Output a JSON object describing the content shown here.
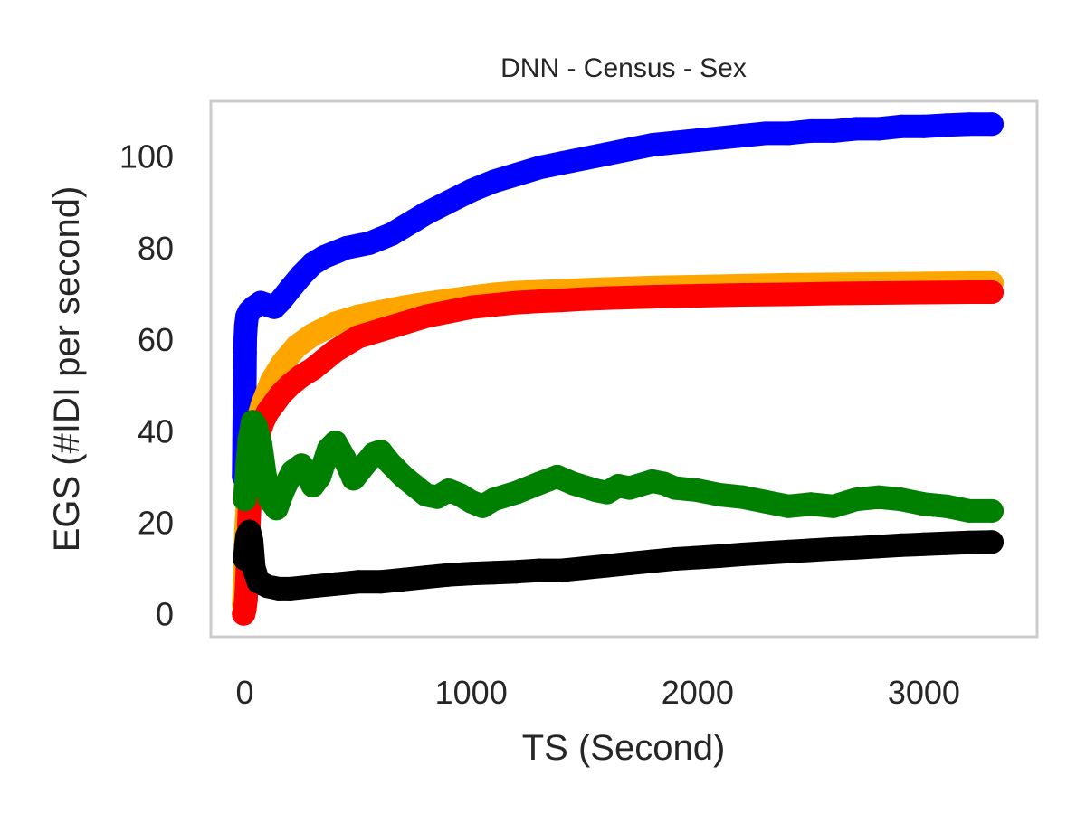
{
  "chart_data": {
    "type": "line",
    "title": "DNN - Census - Sex",
    "xlabel": "TS (Second)",
    "ylabel": "EGS (#IDI  per second)",
    "xlim": [
      -150,
      3500
    ],
    "ylim": [
      -5,
      112
    ],
    "xticks": [
      0,
      1000,
      2000,
      3000
    ],
    "yticks": [
      0,
      20,
      40,
      60,
      80,
      100
    ],
    "grid": false,
    "legend": "none",
    "frame_color": "#cccccc",
    "series": [
      {
        "color": "#0000ff",
        "points": [
          [
            -5,
            30
          ],
          [
            -2,
            44
          ],
          [
            0,
            50
          ],
          [
            1,
            57
          ],
          [
            2,
            60
          ],
          [
            5,
            63
          ],
          [
            10,
            65
          ],
          [
            20,
            66
          ],
          [
            40,
            67
          ],
          [
            70,
            68
          ],
          [
            100,
            67.5
          ],
          [
            130,
            67
          ],
          [
            160,
            68.5
          ],
          [
            200,
            71
          ],
          [
            250,
            74
          ],
          [
            300,
            76.5
          ],
          [
            350,
            78
          ],
          [
            400,
            79
          ],
          [
            450,
            80
          ],
          [
            500,
            80.5
          ],
          [
            550,
            81
          ],
          [
            600,
            82
          ],
          [
            650,
            83
          ],
          [
            700,
            84.5
          ],
          [
            750,
            86
          ],
          [
            800,
            87.5
          ],
          [
            900,
            90
          ],
          [
            1000,
            92.5
          ],
          [
            1100,
            94.5
          ],
          [
            1200,
            96
          ],
          [
            1300,
            97.5
          ],
          [
            1400,
            98.5
          ],
          [
            1500,
            99.5
          ],
          [
            1600,
            100.5
          ],
          [
            1700,
            101.5
          ],
          [
            1800,
            102.5
          ],
          [
            1900,
            103
          ],
          [
            2000,
            103.5
          ],
          [
            2100,
            104
          ],
          [
            2200,
            104.5
          ],
          [
            2300,
            105
          ],
          [
            2400,
            105
          ],
          [
            2500,
            105.5
          ],
          [
            2600,
            105.5
          ],
          [
            2700,
            106
          ],
          [
            2800,
            106
          ],
          [
            2900,
            106.5
          ],
          [
            3000,
            106.5
          ],
          [
            3100,
            106.8
          ],
          [
            3200,
            107
          ],
          [
            3300,
            107
          ]
        ]
      },
      {
        "color": "#ffa500",
        "points": [
          [
            -5,
            2
          ],
          [
            0,
            8
          ],
          [
            5,
            18
          ],
          [
            15,
            28
          ],
          [
            30,
            36
          ],
          [
            50,
            41
          ],
          [
            80,
            46
          ],
          [
            120,
            51
          ],
          [
            170,
            55
          ],
          [
            230,
            58.5
          ],
          [
            300,
            61
          ],
          [
            400,
            63.5
          ],
          [
            500,
            65
          ],
          [
            600,
            66
          ],
          [
            700,
            67
          ],
          [
            800,
            67.8
          ],
          [
            900,
            68.5
          ],
          [
            1000,
            69.2
          ],
          [
            1100,
            69.8
          ],
          [
            1200,
            70.2
          ],
          [
            1400,
            70.6
          ],
          [
            1600,
            71
          ],
          [
            1800,
            71.3
          ],
          [
            2000,
            71.5
          ],
          [
            2200,
            71.7
          ],
          [
            2400,
            71.9
          ],
          [
            2600,
            72
          ],
          [
            2800,
            72.1
          ],
          [
            3000,
            72.2
          ],
          [
            3200,
            72.3
          ],
          [
            3300,
            72.3
          ]
        ]
      },
      {
        "color": "#ff0000",
        "points": [
          [
            -5,
            0
          ],
          [
            0,
            1
          ],
          [
            5,
            3
          ],
          [
            10,
            8
          ],
          [
            15,
            15
          ],
          [
            20,
            22
          ],
          [
            30,
            29
          ],
          [
            45,
            35
          ],
          [
            60,
            39
          ],
          [
            80,
            42
          ],
          [
            100,
            44
          ],
          [
            130,
            46
          ],
          [
            160,
            48
          ],
          [
            200,
            50
          ],
          [
            250,
            52
          ],
          [
            300,
            53.5
          ],
          [
            350,
            55.5
          ],
          [
            400,
            57.5
          ],
          [
            450,
            59
          ],
          [
            500,
            60.5
          ],
          [
            600,
            62
          ],
          [
            700,
            63.5
          ],
          [
            800,
            65
          ],
          [
            900,
            66
          ],
          [
            1000,
            67
          ],
          [
            1100,
            67.5
          ],
          [
            1200,
            68
          ],
          [
            1300,
            68.3
          ],
          [
            1400,
            68.5
          ],
          [
            1500,
            68.8
          ],
          [
            1600,
            69
          ],
          [
            1800,
            69.3
          ],
          [
            2000,
            69.5
          ],
          [
            2200,
            69.7
          ],
          [
            2400,
            69.8
          ],
          [
            2600,
            70
          ],
          [
            2800,
            70.1
          ],
          [
            3000,
            70.2
          ],
          [
            3200,
            70.3
          ],
          [
            3300,
            70.3
          ]
        ]
      },
      {
        "color": "#008000",
        "points": [
          [
            0,
            25
          ],
          [
            10,
            32
          ],
          [
            20,
            38
          ],
          [
            35,
            42
          ],
          [
            50,
            41
          ],
          [
            70,
            37
          ],
          [
            90,
            30
          ],
          [
            110,
            25
          ],
          [
            140,
            23
          ],
          [
            170,
            27
          ],
          [
            210,
            31
          ],
          [
            250,
            32.5
          ],
          [
            300,
            28
          ],
          [
            330,
            30
          ],
          [
            370,
            36
          ],
          [
            400,
            37.5
          ],
          [
            440,
            34
          ],
          [
            480,
            29.5
          ],
          [
            520,
            32
          ],
          [
            570,
            35
          ],
          [
            600,
            35.5
          ],
          [
            640,
            33
          ],
          [
            700,
            30
          ],
          [
            750,
            28
          ],
          [
            800,
            26
          ],
          [
            850,
            25.5
          ],
          [
            900,
            27
          ],
          [
            950,
            26
          ],
          [
            1000,
            24.5
          ],
          [
            1050,
            23.5
          ],
          [
            1100,
            25
          ],
          [
            1200,
            26.5
          ],
          [
            1300,
            28.5
          ],
          [
            1380,
            30
          ],
          [
            1450,
            28.5
          ],
          [
            1550,
            27
          ],
          [
            1600,
            26.5
          ],
          [
            1650,
            28
          ],
          [
            1700,
            27.5
          ],
          [
            1800,
            29
          ],
          [
            1850,
            28.5
          ],
          [
            1900,
            27.5
          ],
          [
            2000,
            27
          ],
          [
            2100,
            26
          ],
          [
            2200,
            25.5
          ],
          [
            2300,
            24.5
          ],
          [
            2400,
            23.5
          ],
          [
            2500,
            24
          ],
          [
            2600,
            23.5
          ],
          [
            2700,
            25
          ],
          [
            2800,
            25.5
          ],
          [
            2900,
            25
          ],
          [
            3000,
            24
          ],
          [
            3100,
            23.5
          ],
          [
            3200,
            22.5
          ],
          [
            3300,
            22.5
          ]
        ]
      },
      {
        "color": "#000000",
        "points": [
          [
            0,
            12
          ],
          [
            5,
            15
          ],
          [
            10,
            17
          ],
          [
            20,
            18
          ],
          [
            30,
            16
          ],
          [
            40,
            10
          ],
          [
            60,
            7
          ],
          [
            100,
            6
          ],
          [
            150,
            5.5
          ],
          [
            200,
            5.5
          ],
          [
            300,
            6
          ],
          [
            400,
            6.5
          ],
          [
            500,
            7
          ],
          [
            600,
            7
          ],
          [
            700,
            7.5
          ],
          [
            800,
            8
          ],
          [
            900,
            8.5
          ],
          [
            1000,
            8.8
          ],
          [
            1100,
            9
          ],
          [
            1200,
            9.2
          ],
          [
            1300,
            9.5
          ],
          [
            1400,
            9.5
          ],
          [
            1500,
            10
          ],
          [
            1600,
            10.5
          ],
          [
            1700,
            11
          ],
          [
            1800,
            11.5
          ],
          [
            1900,
            12
          ],
          [
            2000,
            12.3
          ],
          [
            2100,
            12.6
          ],
          [
            2200,
            13
          ],
          [
            2300,
            13.3
          ],
          [
            2400,
            13.6
          ],
          [
            2500,
            13.9
          ],
          [
            2600,
            14.2
          ],
          [
            2700,
            14.4
          ],
          [
            2800,
            14.7
          ],
          [
            2900,
            15
          ],
          [
            3000,
            15.2
          ],
          [
            3100,
            15.4
          ],
          [
            3200,
            15.6
          ],
          [
            3300,
            15.7
          ]
        ]
      }
    ]
  }
}
